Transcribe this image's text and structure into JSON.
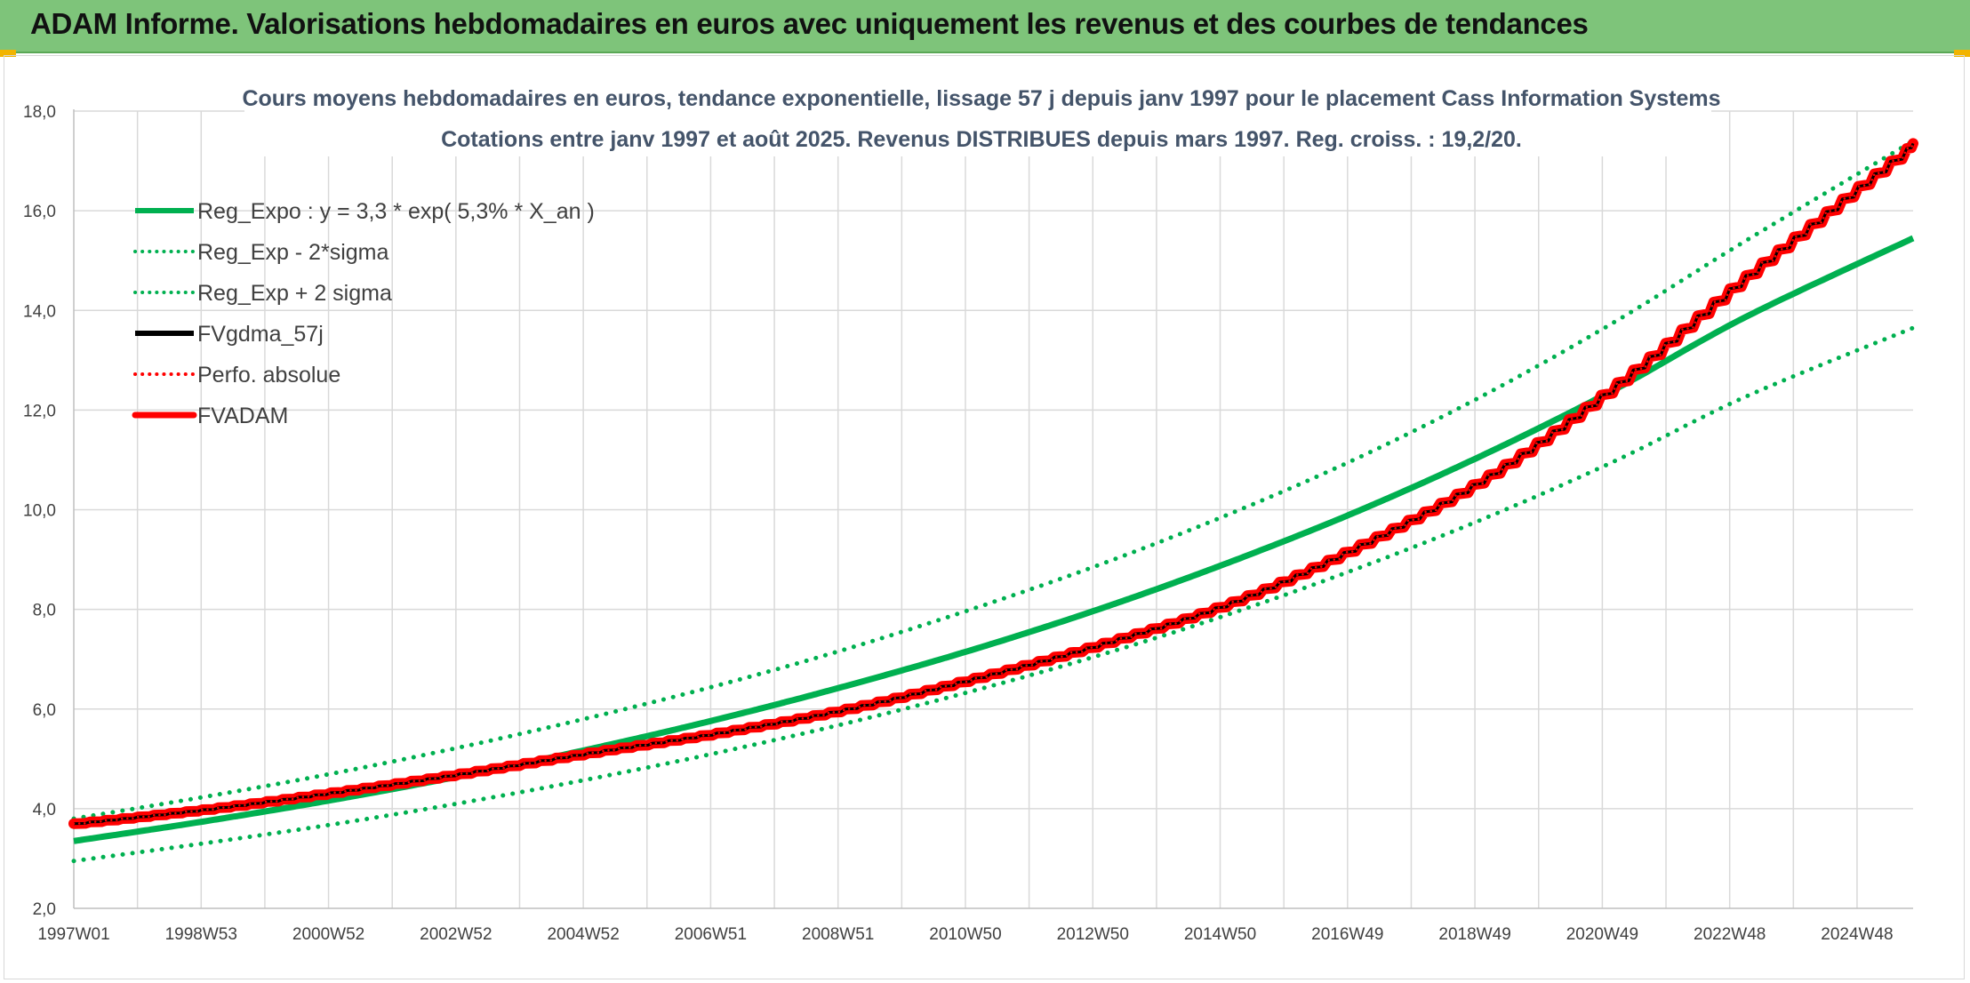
{
  "banner": {
    "title": "ADAM Informe. Valorisations hebdomadaires en euros avec uniquement les revenus et des courbes de tendances"
  },
  "colors": {
    "banner_bg": "#7ec47a",
    "reg_green": "#00b050",
    "adam_red": "#ff0000",
    "black": "#000000",
    "grid": "#d9d9d9"
  },
  "chart_data": {
    "type": "line",
    "title": "Cours moyens hebdomadaires en euros, tendance exponentielle, lissage 57 j depuis janv 1997 pour le placement Cass Information Systems",
    "subtitle": "Cotations entre janv 1997 et août 2025. Revenus DISTRIBUES depuis mars 1997. Reg. croiss. : 19,2/20.",
    "xlabel": "",
    "ylabel": "",
    "ylim": [
      2,
      18
    ],
    "yticks": [
      "2,0",
      "4,0",
      "6,0",
      "8,0",
      "10,0",
      "12,0",
      "14,0",
      "16,0",
      "18,0"
    ],
    "xticks": [
      "1997W01",
      "1998W53",
      "2000W52",
      "2002W52",
      "2004W52",
      "2006W51",
      "2008W51",
      "2010W50",
      "2012W50",
      "2014W50",
      "2016W49",
      "2018W49",
      "2020W49",
      "2022W48",
      "2024W48"
    ],
    "grid": true,
    "legend_position": "top-left",
    "x": [
      1997.0,
      1999.0,
      2001.0,
      2003.0,
      2005.0,
      2007.0,
      2009.0,
      2011.0,
      2013.0,
      2015.0,
      2017.0,
      2019.0,
      2021.0,
      2023.0,
      2025.6
    ],
    "series": [
      {
        "name": "Reg_Expo : y = 3,3 * exp( 5,3% *  X_an )",
        "style": "solid",
        "color": "#00b050",
        "values": [
          3.35,
          3.74,
          4.17,
          4.65,
          5.19,
          5.79,
          6.46,
          7.2,
          8.03,
          8.96,
          9.99,
          11.15,
          12.44,
          13.87,
          15.45
        ]
      },
      {
        "name": "Reg_Exp - 2*sigma",
        "style": "dotted",
        "color": "#00b050",
        "values": [
          2.95,
          3.3,
          3.68,
          4.11,
          4.59,
          5.12,
          5.71,
          6.37,
          7.1,
          7.92,
          8.84,
          9.86,
          11.0,
          12.27,
          13.65
        ]
      },
      {
        "name": "Reg_Exp + 2 sigma",
        "style": "dotted",
        "color": "#00b050",
        "values": [
          3.8,
          4.23,
          4.7,
          5.23,
          5.82,
          6.47,
          7.2,
          8.02,
          8.92,
          9.93,
          11.06,
          12.35,
          13.8,
          15.4,
          17.4
        ]
      },
      {
        "name": "FVgdma_57j",
        "style": "solid",
        "color": "#000000",
        "values": [
          3.7,
          3.98,
          4.32,
          4.7,
          5.12,
          5.52,
          6.0,
          6.62,
          7.32,
          8.15,
          9.3,
          10.7,
          12.55,
          14.7,
          17.35
        ]
      },
      {
        "name": "Perfo. absolue",
        "style": "dotted",
        "color": "#ff0000",
        "values": [
          3.7,
          3.98,
          4.32,
          4.7,
          5.12,
          5.52,
          6.0,
          6.62,
          7.32,
          8.15,
          9.3,
          10.7,
          12.55,
          14.7,
          17.35
        ]
      },
      {
        "name": "FVADAM",
        "style": "solid-thick",
        "color": "#ff0000",
        "values": [
          3.7,
          3.98,
          4.32,
          4.7,
          5.12,
          5.52,
          6.0,
          6.62,
          7.32,
          8.15,
          9.3,
          10.7,
          12.55,
          14.7,
          17.35
        ]
      }
    ]
  }
}
